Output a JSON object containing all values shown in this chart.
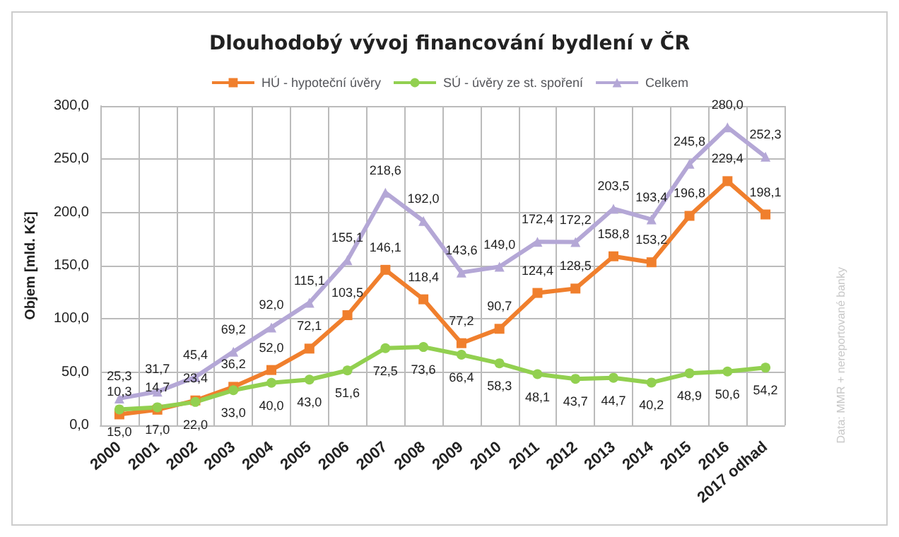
{
  "chart_data": {
    "type": "line",
    "title": "Dlouhodobý vývoj financování bydlení v ČR",
    "ylabel": "Objem [mld. Kč]",
    "categories": [
      "2000",
      "2001",
      "2002",
      "2003",
      "2004",
      "2005",
      "2006",
      "2007",
      "2008",
      "2009",
      "2010",
      "2011",
      "2012",
      "2013",
      "2014",
      "2015",
      "2016",
      "2017 odhad"
    ],
    "series": [
      {
        "name": "HÚ - hypoteční úvěry",
        "color": "#f07f2d",
        "marker": "square",
        "values": [
          10.3,
          14.7,
          23.4,
          36.2,
          52.0,
          72.1,
          103.5,
          146.1,
          118.4,
          77.2,
          90.7,
          124.4,
          128.5,
          158.8,
          153.2,
          196.8,
          229.4,
          198.1
        ],
        "value_labels": [
          "10,3",
          "14,7",
          "23,4",
          "36,2",
          "52,0",
          "72,1",
          "103,5",
          "146,1",
          "118,4",
          "77,2",
          "90,7",
          "124,4",
          "128,5",
          "158,8",
          "153,2",
          "196,8",
          "229,4",
          "198,1"
        ]
      },
      {
        "name": "SÚ - úvěry ze st. spoření",
        "color": "#92d050",
        "marker": "circle",
        "values": [
          15.0,
          17.0,
          22.0,
          33.0,
          40.0,
          43.0,
          51.6,
          72.5,
          73.6,
          66.4,
          58.3,
          48.1,
          43.7,
          44.7,
          40.2,
          48.9,
          50.6,
          54.2
        ],
        "value_labels": [
          "15,0",
          "17,0",
          "22,0",
          "33,0",
          "40,0",
          "43,0",
          "51,6",
          "72,5",
          "73,6",
          "66,4",
          "58,3",
          "48,1",
          "43,7",
          "44,7",
          "40,2",
          "48,9",
          "50,6",
          "54,2"
        ]
      },
      {
        "name": "Celkem",
        "color": "#b4a7d6",
        "marker": "triangle",
        "values": [
          25.3,
          31.7,
          45.4,
          69.2,
          92.0,
          115.1,
          155.1,
          218.6,
          192.0,
          143.6,
          149.0,
          172.4,
          172.2,
          203.5,
          193.4,
          245.8,
          280.0,
          252.3
        ],
        "value_labels": [
          "25,3",
          "31,7",
          "45,4",
          "69,2",
          "92,0",
          "115,1",
          "155,1",
          "218,6",
          "192,0",
          "143,6",
          "149,0",
          "172,4",
          "172,2",
          "203,5",
          "193,4",
          "245,8",
          "280,0",
          "252,3"
        ]
      }
    ],
    "ylim": [
      0,
      300
    ],
    "yticks": [
      {
        "value": 0,
        "label": "0,0"
      },
      {
        "value": 50,
        "label": "50,0"
      },
      {
        "value": 100,
        "label": "100,0"
      },
      {
        "value": 150,
        "label": "150,0"
      },
      {
        "value": 200,
        "label": "200,0"
      },
      {
        "value": 250,
        "label": "250,0"
      },
      {
        "value": 300,
        "label": "300,0"
      }
    ],
    "grid": true,
    "legend": "top",
    "line_style": "solid",
    "annotations": [
      "Data: MMR + nereportované banky"
    ]
  }
}
